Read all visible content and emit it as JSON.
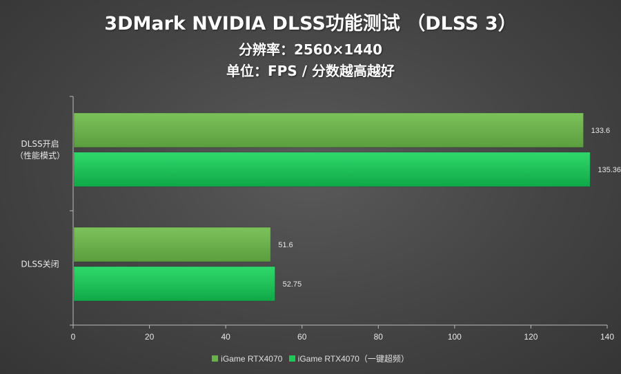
{
  "header": {
    "title": "3DMark NVIDIA DLSS功能测试 （DLSS 3）",
    "subtitle_resolution": "分辨率：2560×1440",
    "subtitle_unit": "单位：FPS / 分数越高越好"
  },
  "colors": {
    "series1": "#6ab04c",
    "series2": "#1bc85a",
    "axis": "#bbbbbb",
    "text": "#e8e8e8"
  },
  "chart_data": {
    "type": "bar",
    "orientation": "horizontal",
    "categories": [
      {
        "lines": [
          "DLSS开启",
          "（性能模式）"
        ]
      },
      {
        "lines": [
          "DLSS关闭"
        ]
      }
    ],
    "series": [
      {
        "name": "iGame RTX4070",
        "values": [
          133.6,
          51.6
        ],
        "labels": [
          "133.6",
          "51.6"
        ]
      },
      {
        "name": "iGame RTX4070（一键超频）",
        "values": [
          135.36,
          52.75
        ],
        "labels": [
          "135.36",
          "52.75"
        ]
      }
    ],
    "xlim": [
      0,
      140
    ],
    "xticks": [
      "0",
      "20",
      "40",
      "60",
      "80",
      "100",
      "120",
      "140"
    ],
    "xtick_values": [
      0,
      20,
      40,
      60,
      80,
      100,
      120,
      140
    ],
    "grid": false,
    "legend_position": "bottom"
  }
}
